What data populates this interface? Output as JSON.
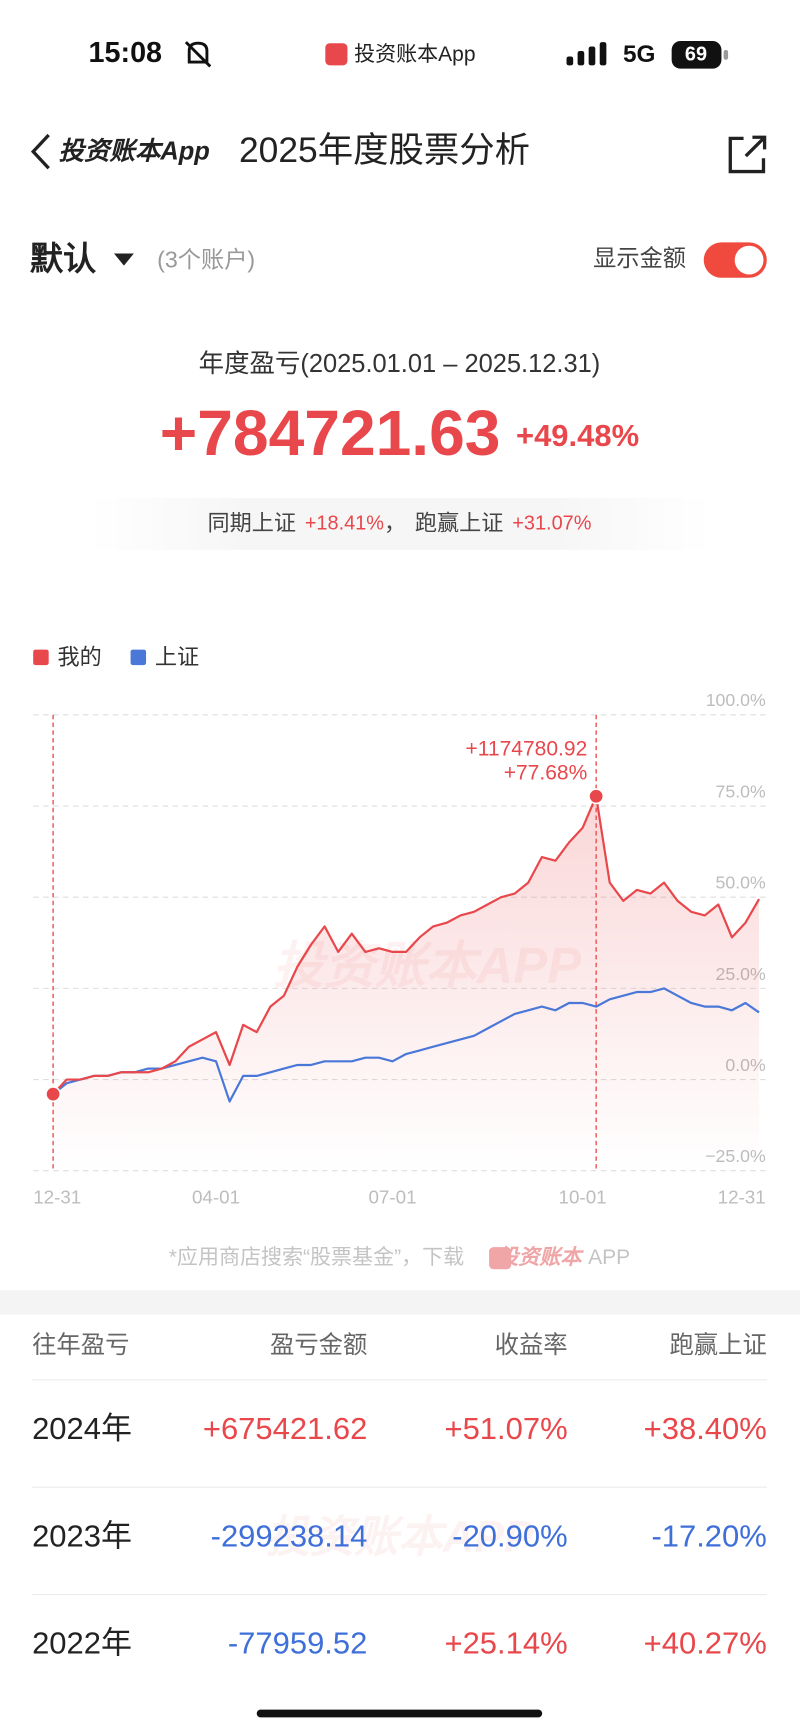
{
  "status_bar": {
    "time": "15:08",
    "app": "投资账本App",
    "network": "5G",
    "battery": "69"
  },
  "nav": {
    "back_label": "投资账本App",
    "title": "2025年度股票分析"
  },
  "account": {
    "name": "默认",
    "count": "(3个账户)",
    "toggle_label": "显示金额",
    "toggle_on": true
  },
  "summary": {
    "label": "年度盈亏(2025.01.01 – 2025.12.31)",
    "amount": "+784721.63",
    "rate": "+49.48%",
    "benchmark_label": "同期上证",
    "benchmark_rate": "+18.41%",
    "separator": "，",
    "excess_label": "跑赢上证",
    "excess_rate": "+31.07%"
  },
  "chart_data": {
    "type": "line",
    "watermark": "投资账本APP",
    "annotation": "+1174780.92",
    "categories": [
      "12-31",
      null,
      null,
      null,
      null,
      null,
      null,
      null,
      null,
      null,
      null,
      null,
      "04-01",
      null,
      null,
      null,
      null,
      null,
      null,
      null,
      null,
      null,
      null,
      null,
      null,
      "07-01",
      null,
      null,
      null,
      null,
      null,
      null,
      null,
      null,
      null,
      null,
      null,
      null,
      null,
      "10-01",
      null,
      null,
      null,
      null,
      null,
      null,
      null,
      null,
      null,
      null,
      null,
      null,
      "12-31"
    ],
    "series": [
      {
        "name": "我的",
        "color": "#e8474b",
        "values": [
          -4,
          0,
          0,
          1,
          1,
          2,
          2,
          2,
          3,
          5,
          9,
          11,
          13,
          4,
          15,
          13,
          20,
          23,
          31,
          37,
          42,
          35,
          40,
          35,
          36,
          35,
          35,
          39,
          42,
          43,
          45,
          46,
          48,
          50,
          51,
          54,
          61,
          60,
          65,
          69,
          77.68,
          54,
          49,
          52,
          51,
          54,
          49,
          46,
          45,
          48,
          39,
          43,
          49.48
        ],
        "value_labels": [
          null,
          null,
          null,
          null,
          null,
          null,
          null,
          null,
          null,
          null,
          null,
          null,
          null,
          null,
          null,
          null,
          null,
          null,
          null,
          null,
          null,
          null,
          null,
          null,
          null,
          null,
          null,
          null,
          null,
          null,
          null,
          null,
          null,
          null,
          null,
          null,
          null,
          null,
          null,
          null,
          "+77.68%",
          null,
          null,
          null,
          null,
          null,
          null,
          null,
          null,
          null,
          null,
          null,
          null
        ]
      },
      {
        "name": "上证",
        "color": "#4a78d8",
        "values": [
          -4,
          -1,
          0,
          1,
          1,
          2,
          2,
          3,
          3,
          4,
          5,
          6,
          5,
          -6,
          1,
          1,
          2,
          3,
          4,
          4,
          5,
          5,
          5,
          6,
          6,
          5,
          7,
          8,
          9,
          10,
          11,
          12,
          14,
          16,
          18,
          19,
          20,
          19,
          21,
          21,
          20,
          22,
          23,
          24,
          24,
          25,
          23,
          21,
          20,
          20,
          19,
          21,
          18.41
        ]
      }
    ],
    "ylim": [
      -25,
      100
    ],
    "yticks": [
      {
        "value": 100,
        "label": "100.0%"
      },
      {
        "value": 75,
        "label": "75.0%"
      },
      {
        "value": 50,
        "label": "50.0%"
      },
      {
        "value": 25,
        "label": "25.0%"
      },
      {
        "value": 0,
        "label": "0.0%"
      },
      {
        "value": -25,
        "label": "−25.0%"
      }
    ],
    "grid": true,
    "legend": "top-left"
  },
  "footer": {
    "text": "*应用商店搜索“股票基金”，下载",
    "brand": "投资账本",
    "suffix": "APP"
  },
  "history": {
    "positive_color": "#e8474b",
    "negative_color": "#3f6fd8",
    "headers": [
      "往年盈亏",
      "盈亏金额",
      "收益率",
      "跑赢上证"
    ],
    "rows": [
      [
        "2024年",
        "+675421.62",
        "+51.07%",
        "+38.40%"
      ],
      [
        "2023年",
        "-299238.14",
        "-20.90%",
        "-17.20%"
      ],
      [
        "2022年",
        "-77959.52",
        "+25.14%",
        "+40.27%"
      ]
    ]
  }
}
